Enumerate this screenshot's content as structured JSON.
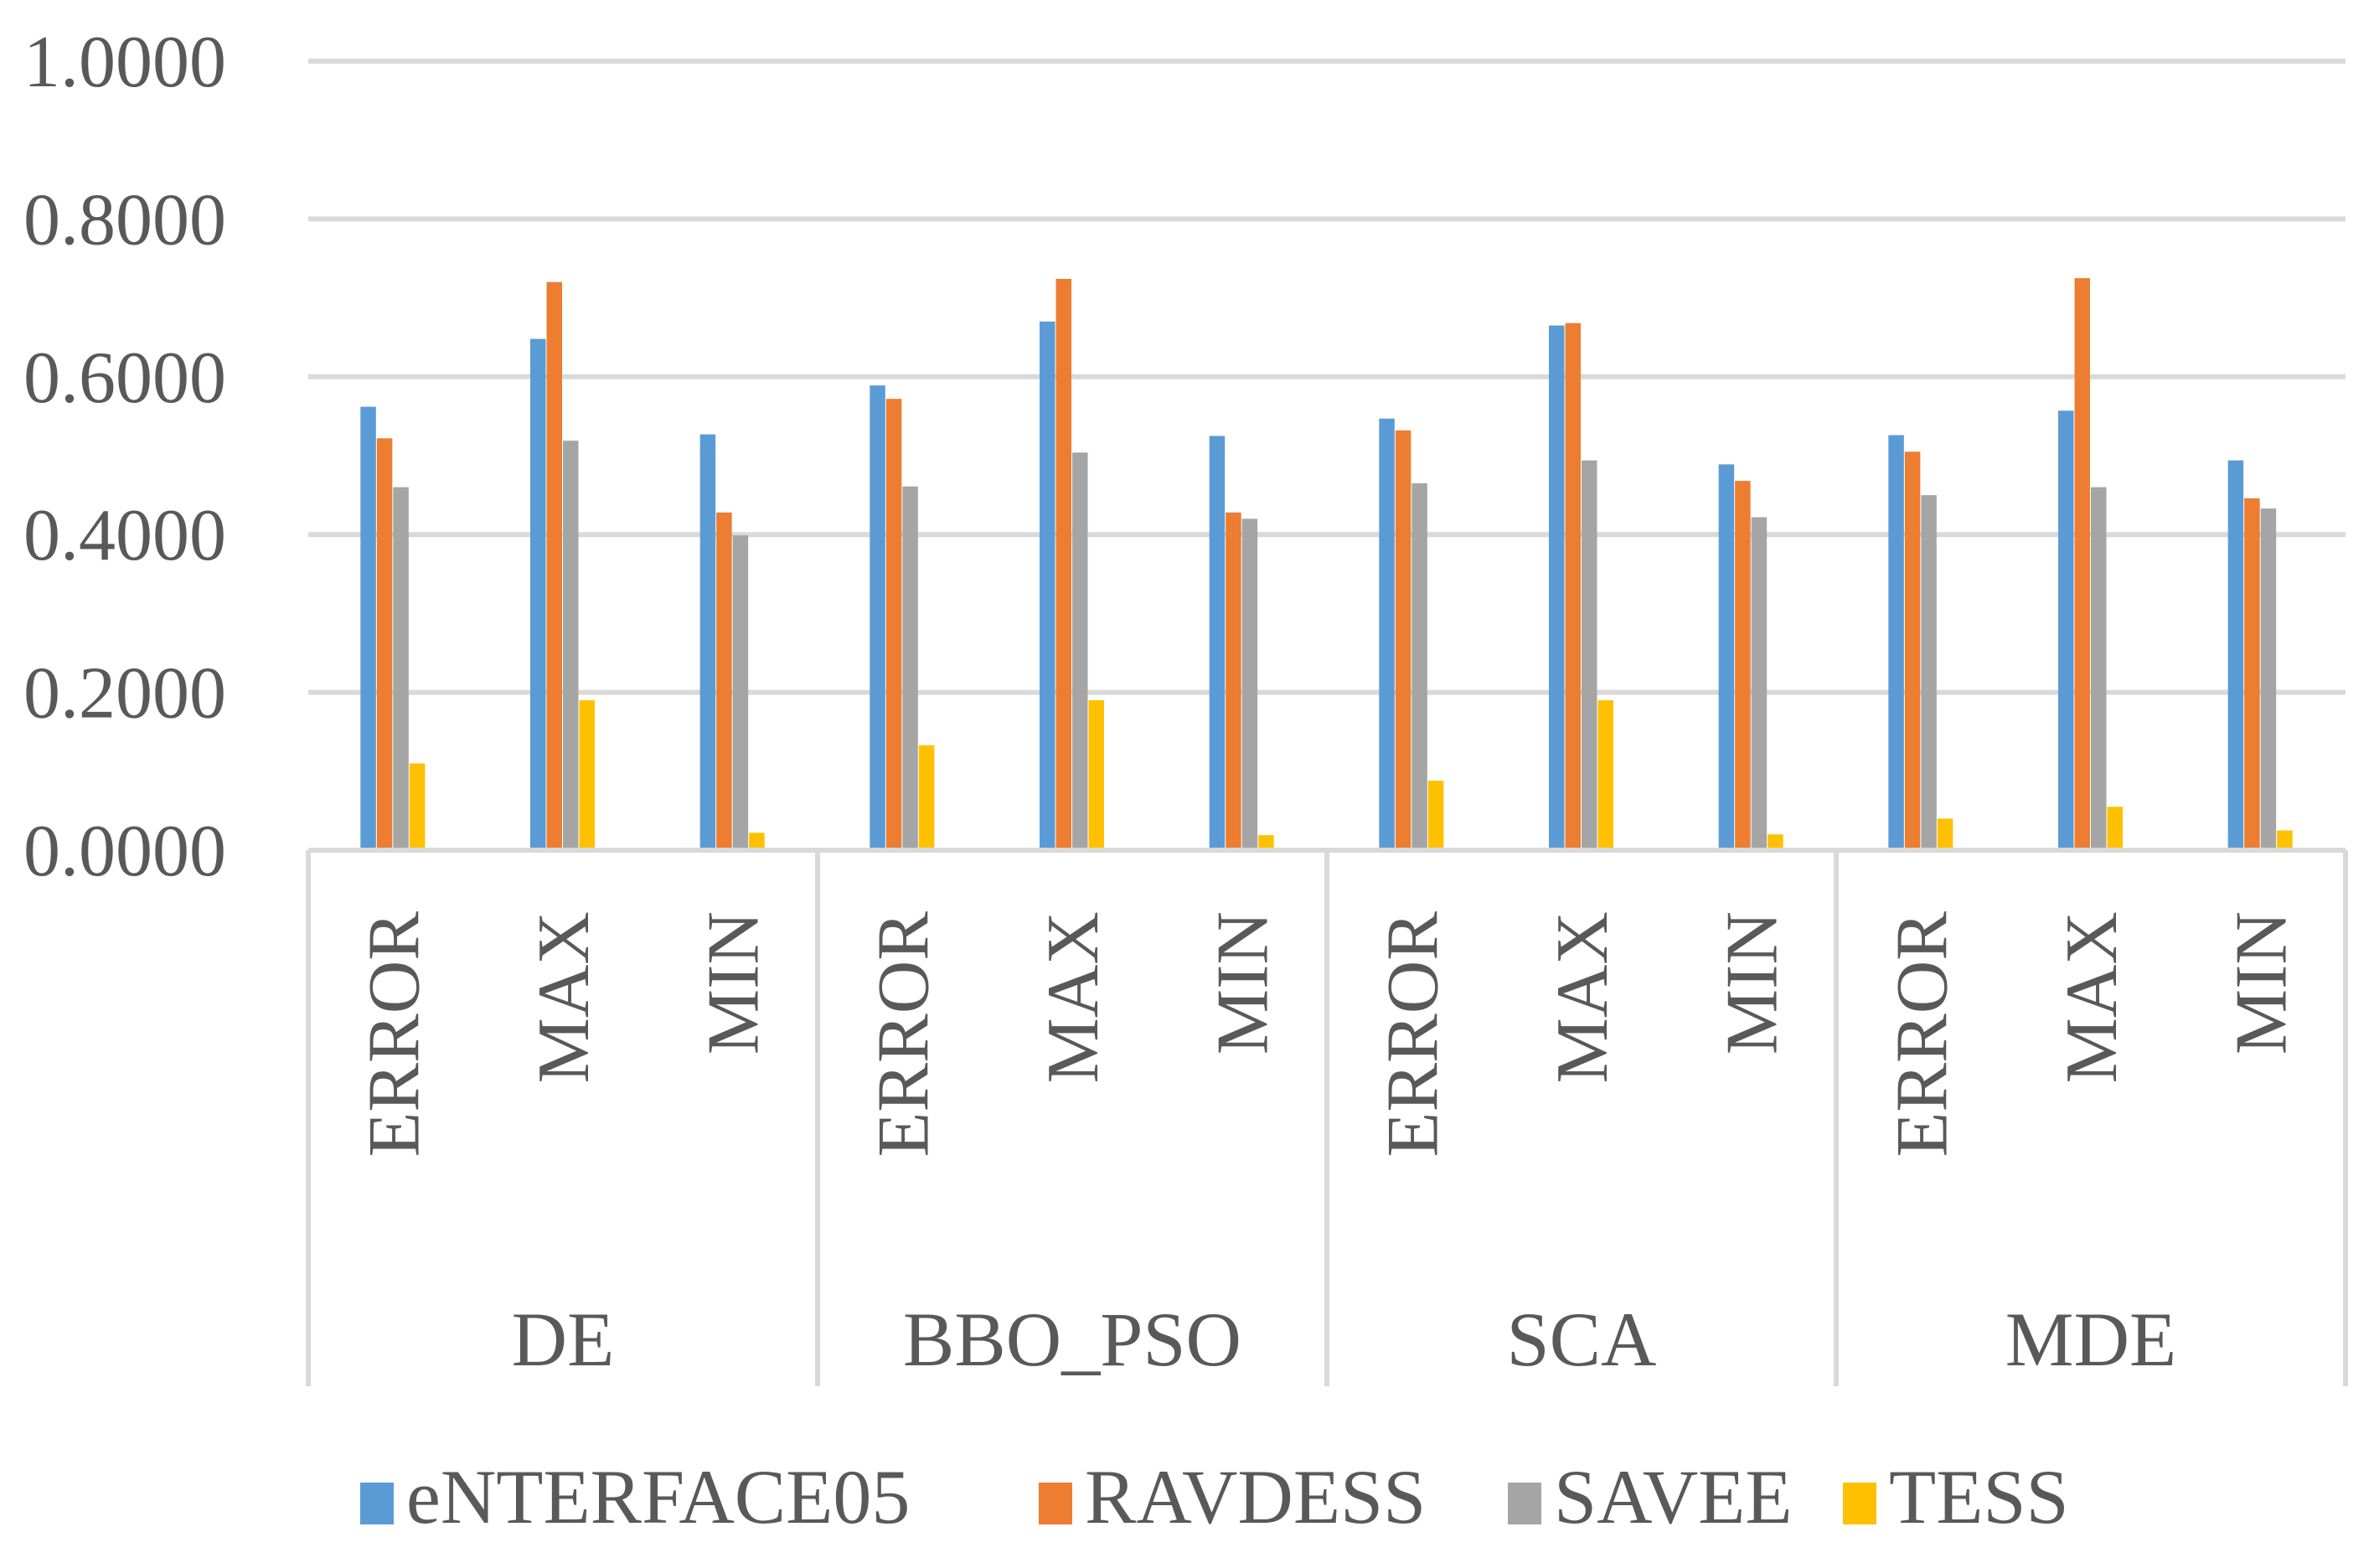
{
  "chart_data": {
    "type": "bar",
    "title": "",
    "xlabel": "",
    "ylabel": "",
    "ylim": [
      0,
      1
    ],
    "y_ticks": [
      "0.0000",
      "0.2000",
      "0.4000",
      "0.6000",
      "0.8000",
      "1.0000"
    ],
    "grid": true,
    "legend_position": "bottom",
    "groups": [
      "DE",
      "BBO_PSO",
      "SCA",
      "MDE"
    ],
    "subcategories": [
      "ERROR",
      "MAX",
      "MIN"
    ],
    "categories": [
      "DE ERROR",
      "DE MAX",
      "DE MIN",
      "BBO_PSO ERROR",
      "BBO_PSO MAX",
      "BBO_PSO MIN",
      "SCA ERROR",
      "SCA MAX",
      "SCA MIN",
      "MDE ERROR",
      "MDE MAX",
      "MDE MIN"
    ],
    "series": [
      {
        "name": "eNTERFACE05",
        "color": "#5B9BD5",
        "values": [
          0.562,
          0.648,
          0.527,
          0.589,
          0.67,
          0.525,
          0.547,
          0.665,
          0.489,
          0.526,
          0.557,
          0.494
        ]
      },
      {
        "name": "RAVDESS",
        "color": "#ED7D31",
        "values": [
          0.522,
          0.72,
          0.428,
          0.572,
          0.724,
          0.428,
          0.532,
          0.668,
          0.468,
          0.505,
          0.725,
          0.446
        ]
      },
      {
        "name": "SAVEE",
        "color": "#A5A5A5",
        "values": [
          0.46,
          0.519,
          0.399,
          0.461,
          0.504,
          0.42,
          0.465,
          0.494,
          0.422,
          0.45,
          0.46,
          0.433
        ]
      },
      {
        "name": "TESS",
        "color": "#FFC000",
        "values": [
          0.11,
          0.19,
          0.022,
          0.133,
          0.19,
          0.019,
          0.088,
          0.19,
          0.02,
          0.04,
          0.055,
          0.025
        ]
      }
    ]
  }
}
